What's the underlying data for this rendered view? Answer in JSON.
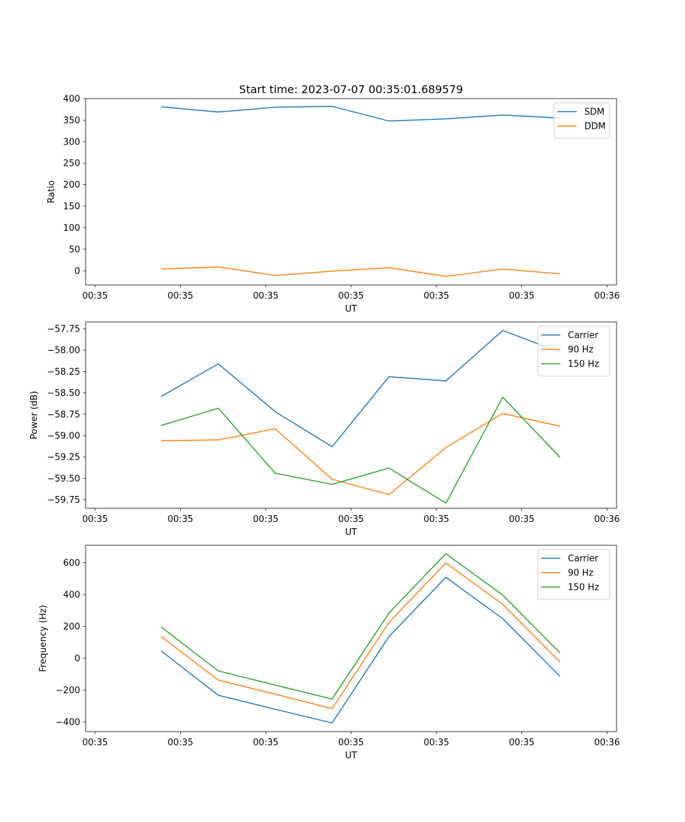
{
  "figure_title": "Start time: 2023-07-07 00:35:01.689579",
  "chart_data": [
    {
      "type": "line",
      "title": "Start time: 2023-07-07 00:35:01.689579",
      "xlabel": "UT",
      "ylabel": "Ratio",
      "x": [
        0.8,
        1.4,
        2.0,
        2.6,
        3.2,
        3.8,
        4.4,
        5.0
      ],
      "xlim": [
        0.0,
        5.6
      ],
      "xticks": [
        0.1,
        1.0,
        1.9,
        2.8,
        3.7,
        4.6,
        5.5
      ],
      "xticklabels": [
        "00:35",
        "00:35",
        "00:35",
        "00:35",
        "00:35",
        "00:35",
        "00:36"
      ],
      "ylim": [
        -33,
        400
      ],
      "yticks": [
        0,
        50,
        100,
        150,
        200,
        250,
        300,
        350,
        400
      ],
      "yticklabels": [
        "0",
        "50",
        "100",
        "150",
        "200",
        "250",
        "300",
        "350",
        "400"
      ],
      "legend_position": "top-right",
      "series": [
        {
          "name": "SDM",
          "color": "#1f77b4",
          "values": [
            381,
            369,
            380,
            382,
            348,
            353,
            362,
            355
          ]
        },
        {
          "name": "DDM",
          "color": "#ff7f0e",
          "values": [
            4,
            9,
            -11,
            -1,
            7,
            -13,
            4,
            -7
          ]
        }
      ]
    },
    {
      "type": "line",
      "title": "",
      "xlabel": "UT",
      "ylabel": "Power (dB)",
      "x": [
        0.8,
        1.4,
        2.0,
        2.6,
        3.2,
        3.8,
        4.4,
        5.0
      ],
      "xlim": [
        0.0,
        5.6
      ],
      "xticks": [
        0.1,
        1.0,
        1.9,
        2.8,
        3.7,
        4.6,
        5.5
      ],
      "xticklabels": [
        "00:35",
        "00:35",
        "00:35",
        "00:35",
        "00:35",
        "00:35",
        "00:36"
      ],
      "ylim": [
        -59.85,
        -57.67
      ],
      "yticks": [
        -59.75,
        -59.5,
        -59.25,
        -59.0,
        -58.75,
        -58.5,
        -58.25,
        -58.0,
        -57.75
      ],
      "yticklabels": [
        "−59.75",
        "−59.50",
        "−59.25",
        "−59.00",
        "−58.75",
        "−58.50",
        "−58.25",
        "−58.00",
        "−57.75"
      ],
      "legend_position": "top-right",
      "series": [
        {
          "name": "Carrier",
          "color": "#1f77b4",
          "values": [
            -58.54,
            -58.16,
            -58.72,
            -59.13,
            -58.31,
            -58.36,
            -57.77,
            -58.02
          ]
        },
        {
          "name": "90 Hz",
          "color": "#ff7f0e",
          "values": [
            -59.06,
            -59.05,
            -58.92,
            -59.51,
            -59.69,
            -59.14,
            -58.74,
            -58.89
          ]
        },
        {
          "name": "150 Hz",
          "color": "#2ca02c",
          "values": [
            -58.88,
            -58.68,
            -59.44,
            -59.57,
            -59.38,
            -59.79,
            -58.55,
            -59.25
          ]
        }
      ]
    },
    {
      "type": "line",
      "title": "",
      "xlabel": "UT",
      "ylabel": "Frequency (Hz)",
      "x": [
        0.8,
        1.4,
        2.0,
        2.6,
        3.2,
        3.8,
        4.4,
        5.0
      ],
      "xlim": [
        0.0,
        5.6
      ],
      "xticks": [
        0.1,
        1.0,
        1.9,
        2.8,
        3.7,
        4.6,
        5.5
      ],
      "xticklabels": [
        "00:35",
        "00:35",
        "00:35",
        "00:35",
        "00:35",
        "00:35",
        "00:36"
      ],
      "ylim": [
        -460,
        710
      ],
      "yticks": [
        -400,
        -200,
        0,
        200,
        400,
        600
      ],
      "yticklabels": [
        "−400",
        "−200",
        "0",
        "200",
        "400",
        "600"
      ],
      "legend_position": "top-right",
      "series": [
        {
          "name": "Carrier",
          "color": "#1f77b4",
          "values": [
            45,
            -232,
            -320,
            -406,
            137,
            509,
            249,
            -111
          ]
        },
        {
          "name": "90 Hz",
          "color": "#ff7f0e",
          "values": [
            135,
            -137,
            -225,
            -316,
            226,
            599,
            339,
            -21
          ]
        },
        {
          "name": "150 Hz",
          "color": "#2ca02c",
          "values": [
            195,
            -79,
            -168,
            -256,
            285,
            657,
            397,
            37
          ]
        }
      ]
    }
  ]
}
